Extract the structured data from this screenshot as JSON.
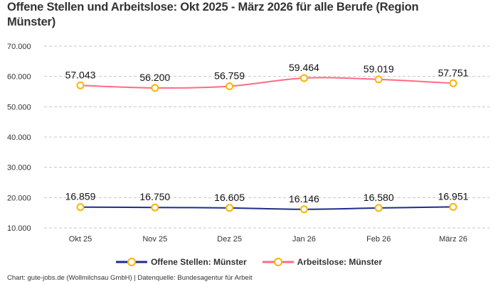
{
  "chart_data": {
    "type": "line",
    "title": "Offene Stellen und Arbeitslose: Okt 2025 - März 2026 für alle Berufe (Region Münster)",
    "categories": [
      "Okt 25",
      "Nov 25",
      "Dez 25",
      "Jan 26",
      "Feb 26",
      "März 26"
    ],
    "ylim": [
      10000,
      70000
    ],
    "yticks": [
      10000,
      20000,
      30000,
      40000,
      50000,
      60000,
      70000
    ],
    "ytick_labels": [
      "10.000",
      "20.000",
      "30.000",
      "40.000",
      "50.000",
      "60.000",
      "70.000"
    ],
    "grid": true,
    "legend_position": "bottom",
    "series": [
      {
        "name": "Offene Stellen: Münster",
        "color": "#1f2d8a",
        "values": [
          16859,
          16750,
          16605,
          16146,
          16580,
          16951
        ],
        "labels": [
          "16.859",
          "16.750",
          "16.605",
          "16.146",
          "16.580",
          "16.951"
        ]
      },
      {
        "name": "Arbeitslose: Münster",
        "color": "#ff6b84",
        "values": [
          57043,
          56200,
          56759,
          59464,
          59019,
          57751
        ],
        "labels": [
          "57.043",
          "56.200",
          "56.759",
          "59.464",
          "59.019",
          "57.751"
        ]
      }
    ],
    "marker_color": "#f7b500"
  },
  "source": "Chart: gute-jobs.de (Wollmilchsau GmbH) | Datenquelle: Bundesagentur für Arbeit"
}
